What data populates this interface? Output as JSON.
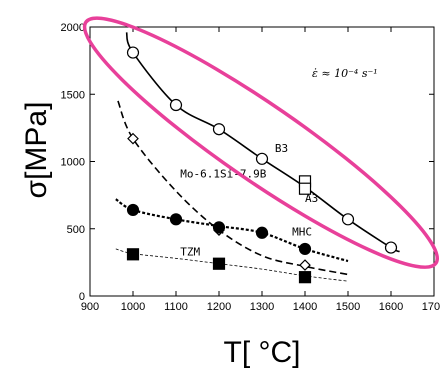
{
  "chart_data": {
    "type": "scatter",
    "xlabel": "T[ °C]",
    "ylabel": "σ[MPa]",
    "xlim": [
      900,
      1700
    ],
    "ylim": [
      0,
      2000
    ],
    "x_ticks": [
      "900",
      "1000",
      "1100",
      "1200",
      "1300",
      "1400",
      "1500",
      "1600",
      "1700"
    ],
    "y_ticks": [
      "0",
      "500",
      "1000",
      "1500",
      "2000"
    ],
    "strain_rate_label": "ε̇ ≈ 10⁻⁴ s⁻¹",
    "series": [
      {
        "name": "B3",
        "marker": "open-circle",
        "line": "solid",
        "points": [
          [
            1000,
            1810
          ],
          [
            1100,
            1420
          ],
          [
            1200,
            1240
          ],
          [
            1300,
            1020
          ],
          [
            1500,
            570
          ],
          [
            1600,
            360
          ]
        ],
        "curve": [
          [
            985,
            1960
          ],
          [
            1000,
            1810
          ],
          [
            1100,
            1420
          ],
          [
            1200,
            1240
          ],
          [
            1300,
            1020
          ],
          [
            1400,
            810
          ],
          [
            1500,
            570
          ],
          [
            1600,
            360
          ],
          [
            1620,
            330
          ]
        ]
      },
      {
        "name": "A3",
        "marker": "open-square",
        "points": [
          [
            1400,
            830
          ],
          [
            1400,
            820
          ]
        ]
      },
      {
        "name": "Mo-6.1Si-7.9B",
        "marker": "open-diamond",
        "line": "dashed",
        "points": [
          [
            1000,
            1170
          ],
          [
            1200,
            490
          ],
          [
            1400,
            230
          ]
        ],
        "curve": [
          [
            965,
            1450
          ],
          [
            1000,
            1170
          ],
          [
            1100,
            780
          ],
          [
            1200,
            490
          ],
          [
            1300,
            300
          ],
          [
            1400,
            220
          ],
          [
            1500,
            160
          ]
        ]
      },
      {
        "name": "MHC",
        "marker": "filled-circle",
        "line": "dotted",
        "points": [
          [
            1000,
            640
          ],
          [
            1100,
            570
          ],
          [
            1200,
            510
          ],
          [
            1300,
            470
          ],
          [
            1400,
            350
          ]
        ],
        "curve": [
          [
            960,
            720
          ],
          [
            1000,
            640
          ],
          [
            1100,
            570
          ],
          [
            1200,
            520
          ],
          [
            1300,
            470
          ],
          [
            1400,
            350
          ],
          [
            1500,
            260
          ]
        ]
      },
      {
        "name": "TZM",
        "marker": "filled-square",
        "line": "thin-dashed",
        "points": [
          [
            1000,
            310
          ],
          [
            1200,
            240
          ],
          [
            1400,
            140
          ]
        ],
        "curve": [
          [
            960,
            350
          ],
          [
            1000,
            315
          ],
          [
            1100,
            280
          ],
          [
            1200,
            240
          ],
          [
            1300,
            200
          ],
          [
            1400,
            150
          ],
          [
            1500,
            110
          ]
        ]
      }
    ],
    "highlight": {
      "shape": "ellipse",
      "color": "#e8409a",
      "around": "B3"
    }
  }
}
